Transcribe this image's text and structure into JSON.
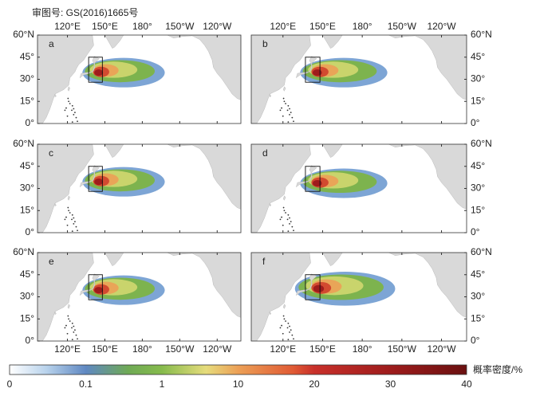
{
  "header": {
    "approval": "审图号: GS(2016)1665号"
  },
  "lon_ticks": [
    "120°E",
    "150°E",
    "180°",
    "150°W",
    "120°W"
  ],
  "lat_ticks": [
    "60°N",
    "45°",
    "30°",
    "15°",
    "0°"
  ],
  "panels": [
    "a",
    "b",
    "c",
    "d",
    "e",
    "f"
  ],
  "colorbar": {
    "ticks": [
      "0",
      "0.1",
      "1",
      "10",
      "20",
      "30",
      "40"
    ],
    "title": "概率密度/%"
  }
}
